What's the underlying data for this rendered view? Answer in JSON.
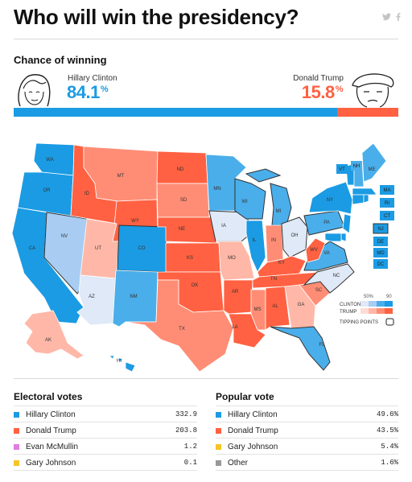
{
  "header": {
    "title": "Who will win the presidency?",
    "social": [
      "twitter-icon",
      "facebook-icon"
    ]
  },
  "chance": {
    "label": "Chance of winning",
    "clinton": {
      "name": "Hillary Clinton",
      "pct": "84.1",
      "unit": "%",
      "share": 0.841,
      "color": "#1b9be3"
    },
    "trump": {
      "name": "Donald Trump",
      "pct": "15.8",
      "unit": "%",
      "share": 0.158,
      "color": "#ff6142"
    }
  },
  "map": {
    "legend": {
      "pct_low": "50%",
      "pct_high": "90",
      "clinton_label": "CLINTON",
      "trump_label": "TRUMP",
      "tipping_label": "TIPPING POINTS"
    },
    "states": [
      "WA",
      "OR",
      "CA",
      "NV",
      "ID",
      "MT",
      "WY",
      "UT",
      "AZ",
      "CO",
      "NM",
      "ND",
      "SD",
      "NE",
      "KS",
      "OK",
      "TX",
      "MN",
      "IA",
      "MO",
      "AR",
      "LA",
      "WI",
      "IL",
      "MI",
      "IN",
      "OH",
      "KY",
      "TN",
      "MS",
      "AL",
      "GA",
      "FL",
      "SC",
      "NC",
      "VA",
      "WV",
      "PA",
      "NY",
      "ME",
      "NH",
      "VT",
      "MA",
      "RI",
      "CT",
      "NJ",
      "DE",
      "MD",
      "DC",
      "AK",
      "HI"
    ]
  },
  "electoral": {
    "title": "Electoral votes",
    "rows": [
      {
        "name": "Hillary Clinton",
        "value": "332.9",
        "color": "#1b9be3"
      },
      {
        "name": "Donald Trump",
        "value": "203.8",
        "color": "#ff6142"
      },
      {
        "name": "Evan McMullin",
        "value": "1.2",
        "color": "#e07ee0"
      },
      {
        "name": "Gary Johnson",
        "value": "0.1",
        "color": "#f5c525"
      }
    ]
  },
  "popular": {
    "title": "Popular vote",
    "rows": [
      {
        "name": "Hillary Clinton",
        "value": "49.6%",
        "color": "#1b9be3"
      },
      {
        "name": "Donald Trump",
        "value": "43.5%",
        "color": "#ff6142"
      },
      {
        "name": "Gary Johnson",
        "value": "5.4%",
        "color": "#f5c525"
      },
      {
        "name": "Other",
        "value": "1.6%",
        "color": "#999999"
      }
    ]
  }
}
